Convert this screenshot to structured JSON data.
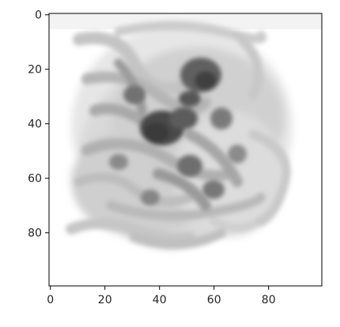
{
  "chart_data": {
    "type": "heatmap",
    "title": "",
    "xlabel": "",
    "ylabel": "",
    "xlim": [
      0,
      99
    ],
    "ylim": [
      99,
      0
    ],
    "y_axis_inverted": true,
    "grid": false,
    "colormap": "gray_r",
    "image_size": [
      100,
      100
    ],
    "x_ticks": [
      0,
      20,
      40,
      60,
      80
    ],
    "y_ticks": [
      0,
      20,
      40,
      60,
      80
    ],
    "x_tick_labels": [
      "0",
      "20",
      "40",
      "60",
      "80"
    ],
    "y_tick_labels": [
      "0",
      "20",
      "40",
      "60",
      "80"
    ],
    "max_intensity_regions": [
      {
        "x": 40,
        "y": 42,
        "intensity": 0.85
      },
      {
        "x": 56,
        "y": 24,
        "intensity": 0.9
      },
      {
        "x": 50,
        "y": 30,
        "intensity": 0.7
      }
    ]
  }
}
